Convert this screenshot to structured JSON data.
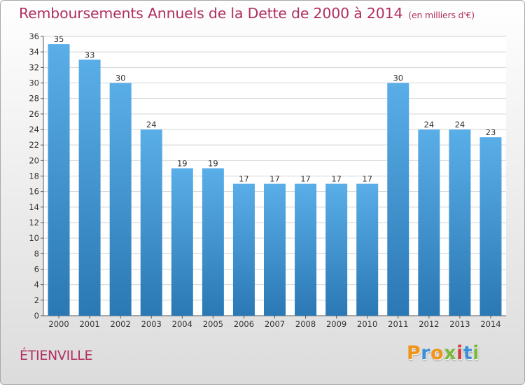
{
  "header": {
    "title": "Remboursements Annuels de la Dette de 2000 à 2014",
    "subtitle": "(en milliers d'€)"
  },
  "location": "ÉTIENVILLE",
  "brand": {
    "letters": [
      {
        "char": "P",
        "color": "#f29418"
      },
      {
        "char": "r",
        "color": "#3a8fd6"
      },
      {
        "char": "o",
        "color": "#f29418"
      },
      {
        "char": "x",
        "color": "#7bb83a"
      },
      {
        "char": "i",
        "color": "#d63c3c"
      },
      {
        "char": "t",
        "color": "#3a8fd6"
      },
      {
        "char": "i",
        "color": "#7bb83a"
      }
    ]
  },
  "colors": {
    "bar_top": "#5aaee8",
    "bar_bottom": "#2a78b4",
    "text": "#b03060"
  },
  "chart_data": {
    "type": "bar",
    "categories": [
      "2000",
      "2001",
      "2002",
      "2003",
      "2004",
      "2005",
      "2006",
      "2007",
      "2008",
      "2009",
      "2010",
      "2011",
      "2012",
      "2013",
      "2014"
    ],
    "values": [
      35,
      33,
      30,
      24,
      19,
      19,
      17,
      17,
      17,
      17,
      17,
      30,
      24,
      24,
      23
    ],
    "title": "Remboursements Annuels de la Dette de 2000 à 2014",
    "ylim": [
      0,
      36
    ],
    "yticks": [
      0,
      2,
      4,
      6,
      8,
      10,
      12,
      14,
      16,
      18,
      20,
      22,
      24,
      26,
      28,
      30,
      32,
      34,
      36
    ],
    "grid": true,
    "legend": "none"
  }
}
